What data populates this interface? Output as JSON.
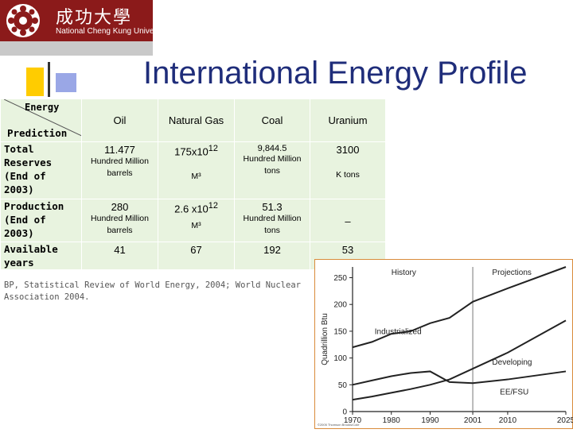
{
  "header": {
    "university_cn": "成功大學",
    "university_en": "National Cheng Kung University",
    "title": "International Energy Profile"
  },
  "table": {
    "corner_energy": "Energy",
    "corner_prediction": "Prediction",
    "columns": [
      "Oil",
      "Natural Gas",
      "Coal",
      "Uranium"
    ],
    "rows": [
      {
        "label": "Total Reserves (End of 2003)",
        "cells": [
          {
            "value": "11.477",
            "unit": "Hundred Million barrels"
          },
          {
            "value": "175x10",
            "exp": "12",
            "unit": "M³"
          },
          {
            "value": "9,844.5",
            "unit": "Hundred Million tons"
          },
          {
            "value": "3100",
            "unit": "K tons"
          }
        ]
      },
      {
        "label": "Production (End of 2003)",
        "cells": [
          {
            "value": "280",
            "unit": "Hundred Million barrels"
          },
          {
            "value": "2.6 x10",
            "exp": "12",
            "unit": "M³"
          },
          {
            "value": "51.3",
            "unit": "Hundred Million tons"
          },
          {
            "value": "–",
            "unit": ""
          }
        ]
      },
      {
        "label": "Available years",
        "cells": [
          {
            "value": "41"
          },
          {
            "value": "67"
          },
          {
            "value": "192"
          },
          {
            "value": "53"
          }
        ]
      }
    ]
  },
  "source": "BP, Statistical Review of World Energy, 2004; World Nuclear Association 2004.",
  "chart_data": {
    "type": "line",
    "title": "",
    "xlabel": "",
    "ylabel": "Quadrillion Btu",
    "xlim": [
      1970,
      2025
    ],
    "ylim": [
      0,
      270
    ],
    "x_ticks": [
      "1970",
      "1980",
      "1990",
      "2001",
      "2010",
      "2025"
    ],
    "y_ticks": [
      "0",
      "50",
      "100",
      "150",
      "200",
      "250"
    ],
    "grid": false,
    "annotations": [
      "History",
      "Projections"
    ],
    "divider_x": 2001,
    "series": [
      {
        "name": "Industrialized",
        "x": [
          1970,
          1975,
          1980,
          1985,
          1990,
          1995,
          2001,
          2010,
          2025
        ],
        "values": [
          120,
          130,
          145,
          150,
          165,
          175,
          205,
          230,
          270
        ]
      },
      {
        "name": "Developing",
        "x": [
          1970,
          1975,
          1980,
          1985,
          1990,
          1995,
          2001,
          2010,
          2025
        ],
        "values": [
          22,
          28,
          35,
          42,
          50,
          60,
          80,
          110,
          170
        ]
      },
      {
        "name": "EE/FSU",
        "x": [
          1970,
          1975,
          1980,
          1985,
          1990,
          1995,
          2001,
          2010,
          2025
        ],
        "values": [
          50,
          58,
          66,
          72,
          75,
          55,
          53,
          60,
          75
        ]
      }
    ],
    "footnote": "©2005 Thomson Brooks/Cole"
  }
}
